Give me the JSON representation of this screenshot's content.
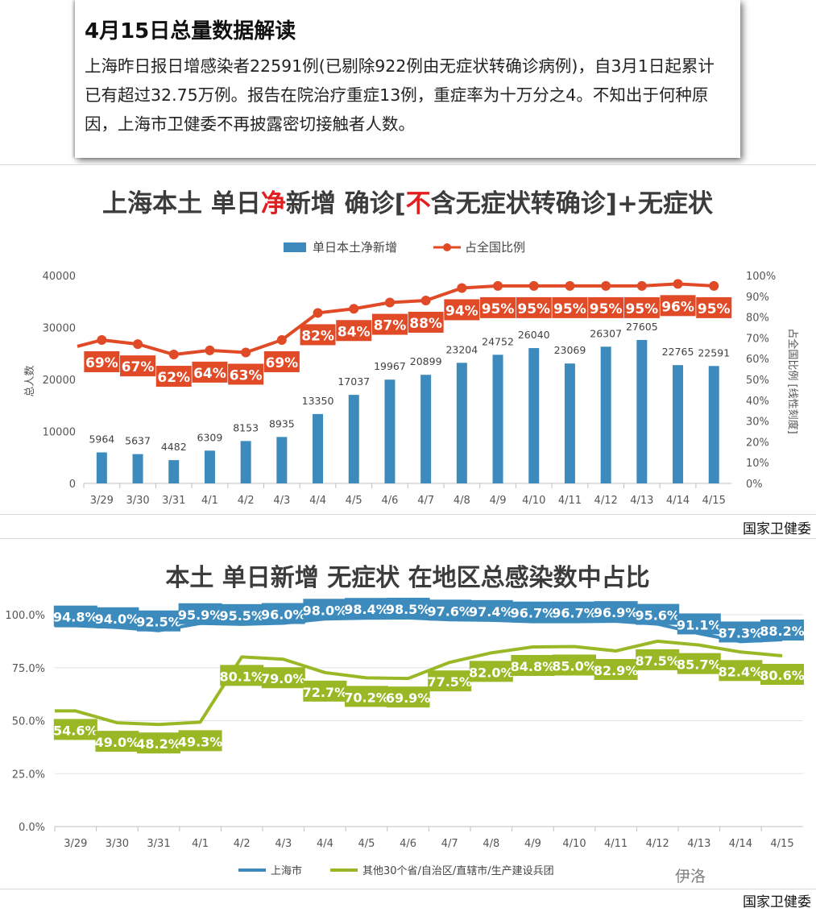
{
  "note": {
    "title": "4月15日总量数据解读",
    "body": "上海昨日报日增感染者22591例(已剔除922例由无症状转确诊病例)，自3月1日起累计已有超过32.75万例。报告在院治疗重症13例，重症率为十万分之4。不知出于何种原因，上海市卫健委不再披露密切接触者人数。"
  },
  "chart1": {
    "title_parts": [
      "上海本土 单日",
      "净",
      "新增 确诊[",
      "不",
      "含无症状转确诊]+无症状"
    ],
    "source": "国家卫健委",
    "chart_data": {
      "type": "bar+line",
      "categories": [
        "3/29",
        "3/30",
        "3/31",
        "4/1",
        "4/2",
        "4/3",
        "4/4",
        "4/5",
        "4/6",
        "4/7",
        "4/8",
        "4/9",
        "4/10",
        "4/11",
        "4/12",
        "4/13",
        "4/14",
        "4/15"
      ],
      "series": [
        {
          "name": "单日本土净新增",
          "type": "bar",
          "axis": "left",
          "color": "#3d8bbd",
          "values": [
            5964,
            5637,
            4482,
            6309,
            8153,
            8935,
            13350,
            17037,
            19967,
            20899,
            23204,
            24752,
            26040,
            23069,
            26307,
            27605,
            22765,
            22591
          ]
        },
        {
          "name": "占全国比例",
          "type": "line",
          "axis": "right",
          "color": "#e04a26",
          "values": [
            69,
            67,
            62,
            64,
            63,
            69,
            82,
            84,
            87,
            88,
            94,
            95,
            95,
            95,
            95,
            95,
            96,
            95
          ],
          "labels": [
            "69%",
            "67%",
            "62%",
            "64%",
            "63%",
            "69%",
            "82%",
            "84%",
            "87%",
            "88%",
            "94%",
            "95%",
            "95%",
            "95%",
            "95%",
            "95%",
            "96%",
            "95%"
          ]
        }
      ],
      "ylabel_left": "总人数",
      "ylabel_right": "占全国比例 [线性刻度]",
      "ylim_left": [
        0,
        40000
      ],
      "yticks_left": [
        "0",
        "10000",
        "20000",
        "30000",
        "40000"
      ],
      "ylim_right": [
        0,
        100
      ],
      "yticks_right": [
        "0%",
        "10%",
        "20%",
        "30%",
        "40%",
        "50%",
        "60%",
        "70%",
        "80%",
        "90%",
        "100%"
      ]
    }
  },
  "chart2": {
    "title": "本土 单日新增 无症状 在地区总感染数中占比",
    "source": "国家卫健委",
    "chart_data": {
      "type": "line",
      "categories": [
        "3/29",
        "3/30",
        "3/31",
        "4/1",
        "4/2",
        "4/3",
        "4/4",
        "4/5",
        "4/6",
        "4/7",
        "4/8",
        "4/9",
        "4/10",
        "4/11",
        "4/12",
        "4/13",
        "4/14",
        "4/15"
      ],
      "series": [
        {
          "name": "上海市",
          "color": "#3d8bbd",
          "values": [
            94.8,
            94.0,
            92.5,
            95.9,
            95.5,
            96.0,
            98.0,
            98.4,
            98.5,
            97.6,
            97.4,
            96.7,
            96.7,
            96.9,
            95.6,
            91.1,
            87.3,
            88.2
          ],
          "labels": [
            "94.8%",
            "94.0%",
            "92.5%",
            "95.9%",
            "95.5%",
            "96.0%",
            "98.0%",
            "98.4%",
            "98.5%",
            "97.6%",
            "97.4%",
            "96.7%",
            "96.7%",
            "96.9%",
            "95.6%",
            "91.1%",
            "87.3%",
            "88.2%"
          ]
        },
        {
          "name": "其他30个省/自治区/直辖市/生产建设兵团",
          "color": "#9ab826",
          "values": [
            54.6,
            49.0,
            48.2,
            49.3,
            80.1,
            79.0,
            72.7,
            70.2,
            69.9,
            77.5,
            82.0,
            84.8,
            85.0,
            82.9,
            87.5,
            85.7,
            82.4,
            80.6
          ],
          "labels": [
            "54.6%",
            "49.0%",
            "48.2%",
            "49.3%",
            "80.1%",
            "79.0%",
            "72.7%",
            "70.2%",
            "69.9%",
            "77.5%",
            "82.0%",
            "84.8%",
            "85.0%",
            "82.9%",
            "87.5%",
            "85.7%",
            "82.4%",
            "80.6%"
          ]
        }
      ],
      "ylim": [
        0,
        100
      ],
      "yticks": [
        "0.0%",
        "25.0%",
        "50.0%",
        "75.0%",
        "100.0%"
      ]
    }
  },
  "watermark": "伊洛"
}
